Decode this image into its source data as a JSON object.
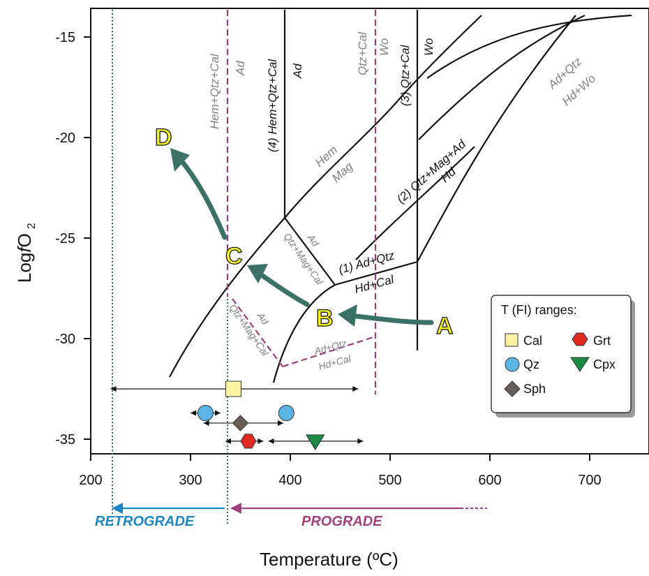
{
  "chart_data": {
    "type": "phase-diagram",
    "title": "",
    "xlabel": "Temperature (ºC)",
    "ylabel_prefix": "Log",
    "ylabel_var": "f",
    "ylabel_species": "O",
    "ylabel_sub": "2",
    "xlim": [
      200,
      750
    ],
    "ylim": [
      -36,
      -13.5
    ],
    "x_ticks": [
      "200",
      "300",
      "400",
      "500",
      "600",
      "700"
    ],
    "y_ticks": [
      "-15",
      "-20",
      "-25",
      "-30",
      "-35"
    ],
    "reactions": [
      {
        "label": "(1) Ad+Qtz",
        "label2": "Hd+Cal"
      },
      {
        "label": "(2) Qtz+Mag+Ad",
        "label2": "Hd"
      },
      {
        "label": "(3) Qtz+Cal",
        "label2": "Wo"
      },
      {
        "label": "(4) Hem+Qtz+Cal",
        "label2": "Ad"
      }
    ],
    "field_labels": [
      {
        "top": "Hem",
        "bottom": "Mag"
      },
      {
        "top": "Ad+Qtz",
        "bottom": "Hd+Wo"
      },
      {
        "top": "Hem+Qtz+Cal",
        "bottom": "Ad"
      },
      {
        "top": "Qtz+Cal",
        "bottom": "Wo"
      },
      {
        "top": "Ad",
        "bottom": "Qtz+Mag+Cal"
      },
      {
        "top": "Ad",
        "bottom": "Qtz+Mag+Cal"
      },
      {
        "top": "Ad+Qtz",
        "bottom": "Hd+Cal"
      }
    ],
    "path_points": [
      "A",
      "B",
      "C",
      "D"
    ],
    "legend": {
      "title": "T (FI) ranges:",
      "items": [
        "Cal",
        "Grt",
        "Qz",
        "Cpx",
        "Sph"
      ]
    },
    "fi_ranges": [
      {
        "mineral": "Cal",
        "t_min": 220,
        "t_mean": 343,
        "t_max": 468,
        "logfo2": -32.5
      },
      {
        "mineral": "Qz",
        "t_min": 300,
        "t_mean": 315,
        "t_max": 330,
        "logfo2": -33.7
      },
      {
        "mineral": "Qz",
        "t_min": 395,
        "t_mean": 396,
        "t_max": 400,
        "logfo2": -33.7
      },
      {
        "mineral": "Sph",
        "t_min": 313,
        "t_mean": 350,
        "t_max": 393,
        "logfo2": -34.2
      },
      {
        "mineral": "Grt",
        "t_min": 335,
        "t_mean": 358,
        "t_max": 373,
        "logfo2": -35.1
      },
      {
        "mineral": "Cpx",
        "t_min": 378,
        "t_mean": 425,
        "t_max": 473,
        "logfo2": -35.1
      }
    ],
    "trends": [
      "RETROGRADE",
      "PROGRADE"
    ]
  },
  "colors": {
    "path": "#3b7167",
    "dashed": "#9a3b7d",
    "dotted": "#2f6f68",
    "retrograde": "#1a86c5",
    "prograde": "#a0427f",
    "point_fill": "#f6f221",
    "cal": "#fbf3a4",
    "qz": "#5ab5e6",
    "sph": "#6a5c57",
    "grt": "#e02a21",
    "cpx": "#1a8a45",
    "gray_text": "#808080"
  }
}
